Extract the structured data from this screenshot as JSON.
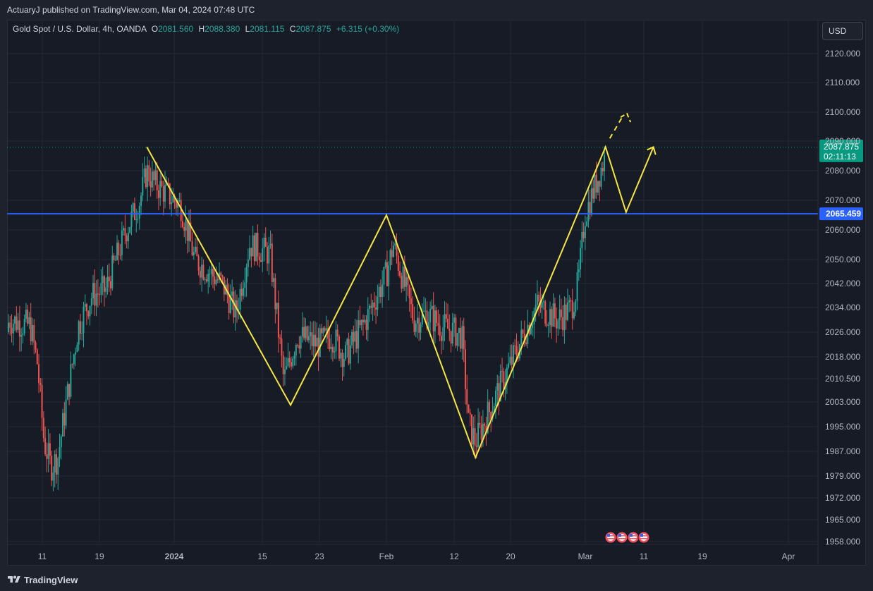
{
  "header": {
    "published": "ActuaryJ published on TradingView.com, Mar 04, 2024 07:48 UTC"
  },
  "legend": {
    "symbol": "Gold Spot / U.S. Dollar, 4h, OANDA",
    "o_label": "O",
    "o_value": "2081.560",
    "h_label": "H",
    "h_value": "2088.380",
    "l_label": "L",
    "l_value": "2081.115",
    "c_label": "C",
    "c_value": "2087.875",
    "change": "+6.315 (+0.30%)"
  },
  "currency_button": "USD",
  "footer": {
    "brand": "TradingView"
  },
  "colors": {
    "up": "#26a69a",
    "down": "#ef5350",
    "pattern": "#f5e642",
    "level": "#2962ff",
    "current_price": "#089981"
  },
  "chart_data": {
    "type": "candlestick",
    "symbol": "XAUUSD",
    "timeframe": "4h",
    "y_ticks": [
      "2120.000",
      "2110.000",
      "2100.000",
      "2090.000",
      "2080.000",
      "2070.000",
      "2060.000",
      "2050.000",
      "2042.000",
      "2034.000",
      "2026.000",
      "2018.000",
      "2010.500",
      "2003.000",
      "1995.000",
      "1987.000",
      "1979.000",
      "1972.000",
      "1965.000",
      "1958.000"
    ],
    "x_ticks": [
      "11",
      "19",
      "2024",
      "15",
      "23",
      "Feb",
      "12",
      "20",
      "Mar",
      "11",
      "19",
      "Apr"
    ],
    "current_price": {
      "value": "2087.875",
      "countdown": "02:11:13"
    },
    "horizontal_level": {
      "value": "2065.459"
    },
    "pattern_points": [
      {
        "date": "2023-12-28",
        "price": 2088
      },
      {
        "date": "2024-01-18",
        "price": 2002
      },
      {
        "date": "2024-02-01",
        "price": 2065
      },
      {
        "date": "2024-02-14",
        "price": 1985
      },
      {
        "date": "2024-03-04",
        "price": 2088
      },
      {
        "date": "2024-03-07",
        "price": 2066
      },
      {
        "date": "2024-03-11",
        "price": 2088
      }
    ],
    "projection_dashed": [
      {
        "date": "2024-03-04",
        "price": 2089
      },
      {
        "date": "2024-03-06",
        "price": 2099
      }
    ],
    "price_path": [
      [
        "2023-12-07",
        2026
      ],
      [
        "2023-12-08",
        2030
      ],
      [
        "2023-12-11",
        2028
      ],
      [
        "2023-12-12",
        2016
      ],
      [
        "2023-12-13",
        1990
      ],
      [
        "2023-12-14",
        1982
      ],
      [
        "2023-12-15",
        1985
      ],
      [
        "2023-12-18",
        2028
      ],
      [
        "2023-12-20",
        2038
      ],
      [
        "2023-12-22",
        2040
      ],
      [
        "2023-12-25",
        2060
      ],
      [
        "2023-12-27",
        2070
      ],
      [
        "2023-12-28",
        2080
      ],
      [
        "2023-12-29",
        2076
      ],
      [
        "2024-01-02",
        2068
      ],
      [
        "2024-01-04",
        2050
      ],
      [
        "2024-01-08",
        2042
      ],
      [
        "2024-01-10",
        2032
      ],
      [
        "2024-01-12",
        2055
      ],
      [
        "2024-01-15",
        2052
      ],
      [
        "2024-01-17",
        2010
      ],
      [
        "2024-01-19",
        2025
      ],
      [
        "2024-01-22",
        2022
      ],
      [
        "2024-01-24",
        2025
      ],
      [
        "2024-01-26",
        2018
      ],
      [
        "2024-01-29",
        2030
      ],
      [
        "2024-02-01",
        2045
      ],
      [
        "2024-02-02",
        2055
      ],
      [
        "2024-02-05",
        2030
      ],
      [
        "2024-02-07",
        2032
      ],
      [
        "2024-02-09",
        2028
      ],
      [
        "2024-02-12",
        2025
      ],
      [
        "2024-02-13",
        1996
      ],
      [
        "2024-02-14",
        1990
      ],
      [
        "2024-02-16",
        2000
      ],
      [
        "2024-02-19",
        2015
      ],
      [
        "2024-02-21",
        2025
      ],
      [
        "2024-02-23",
        2035
      ],
      [
        "2024-02-26",
        2030
      ],
      [
        "2024-02-28",
        2034
      ],
      [
        "2024-02-29",
        2042
      ],
      [
        "2024-03-01",
        2065
      ],
      [
        "2024-03-04",
        2085
      ]
    ]
  }
}
